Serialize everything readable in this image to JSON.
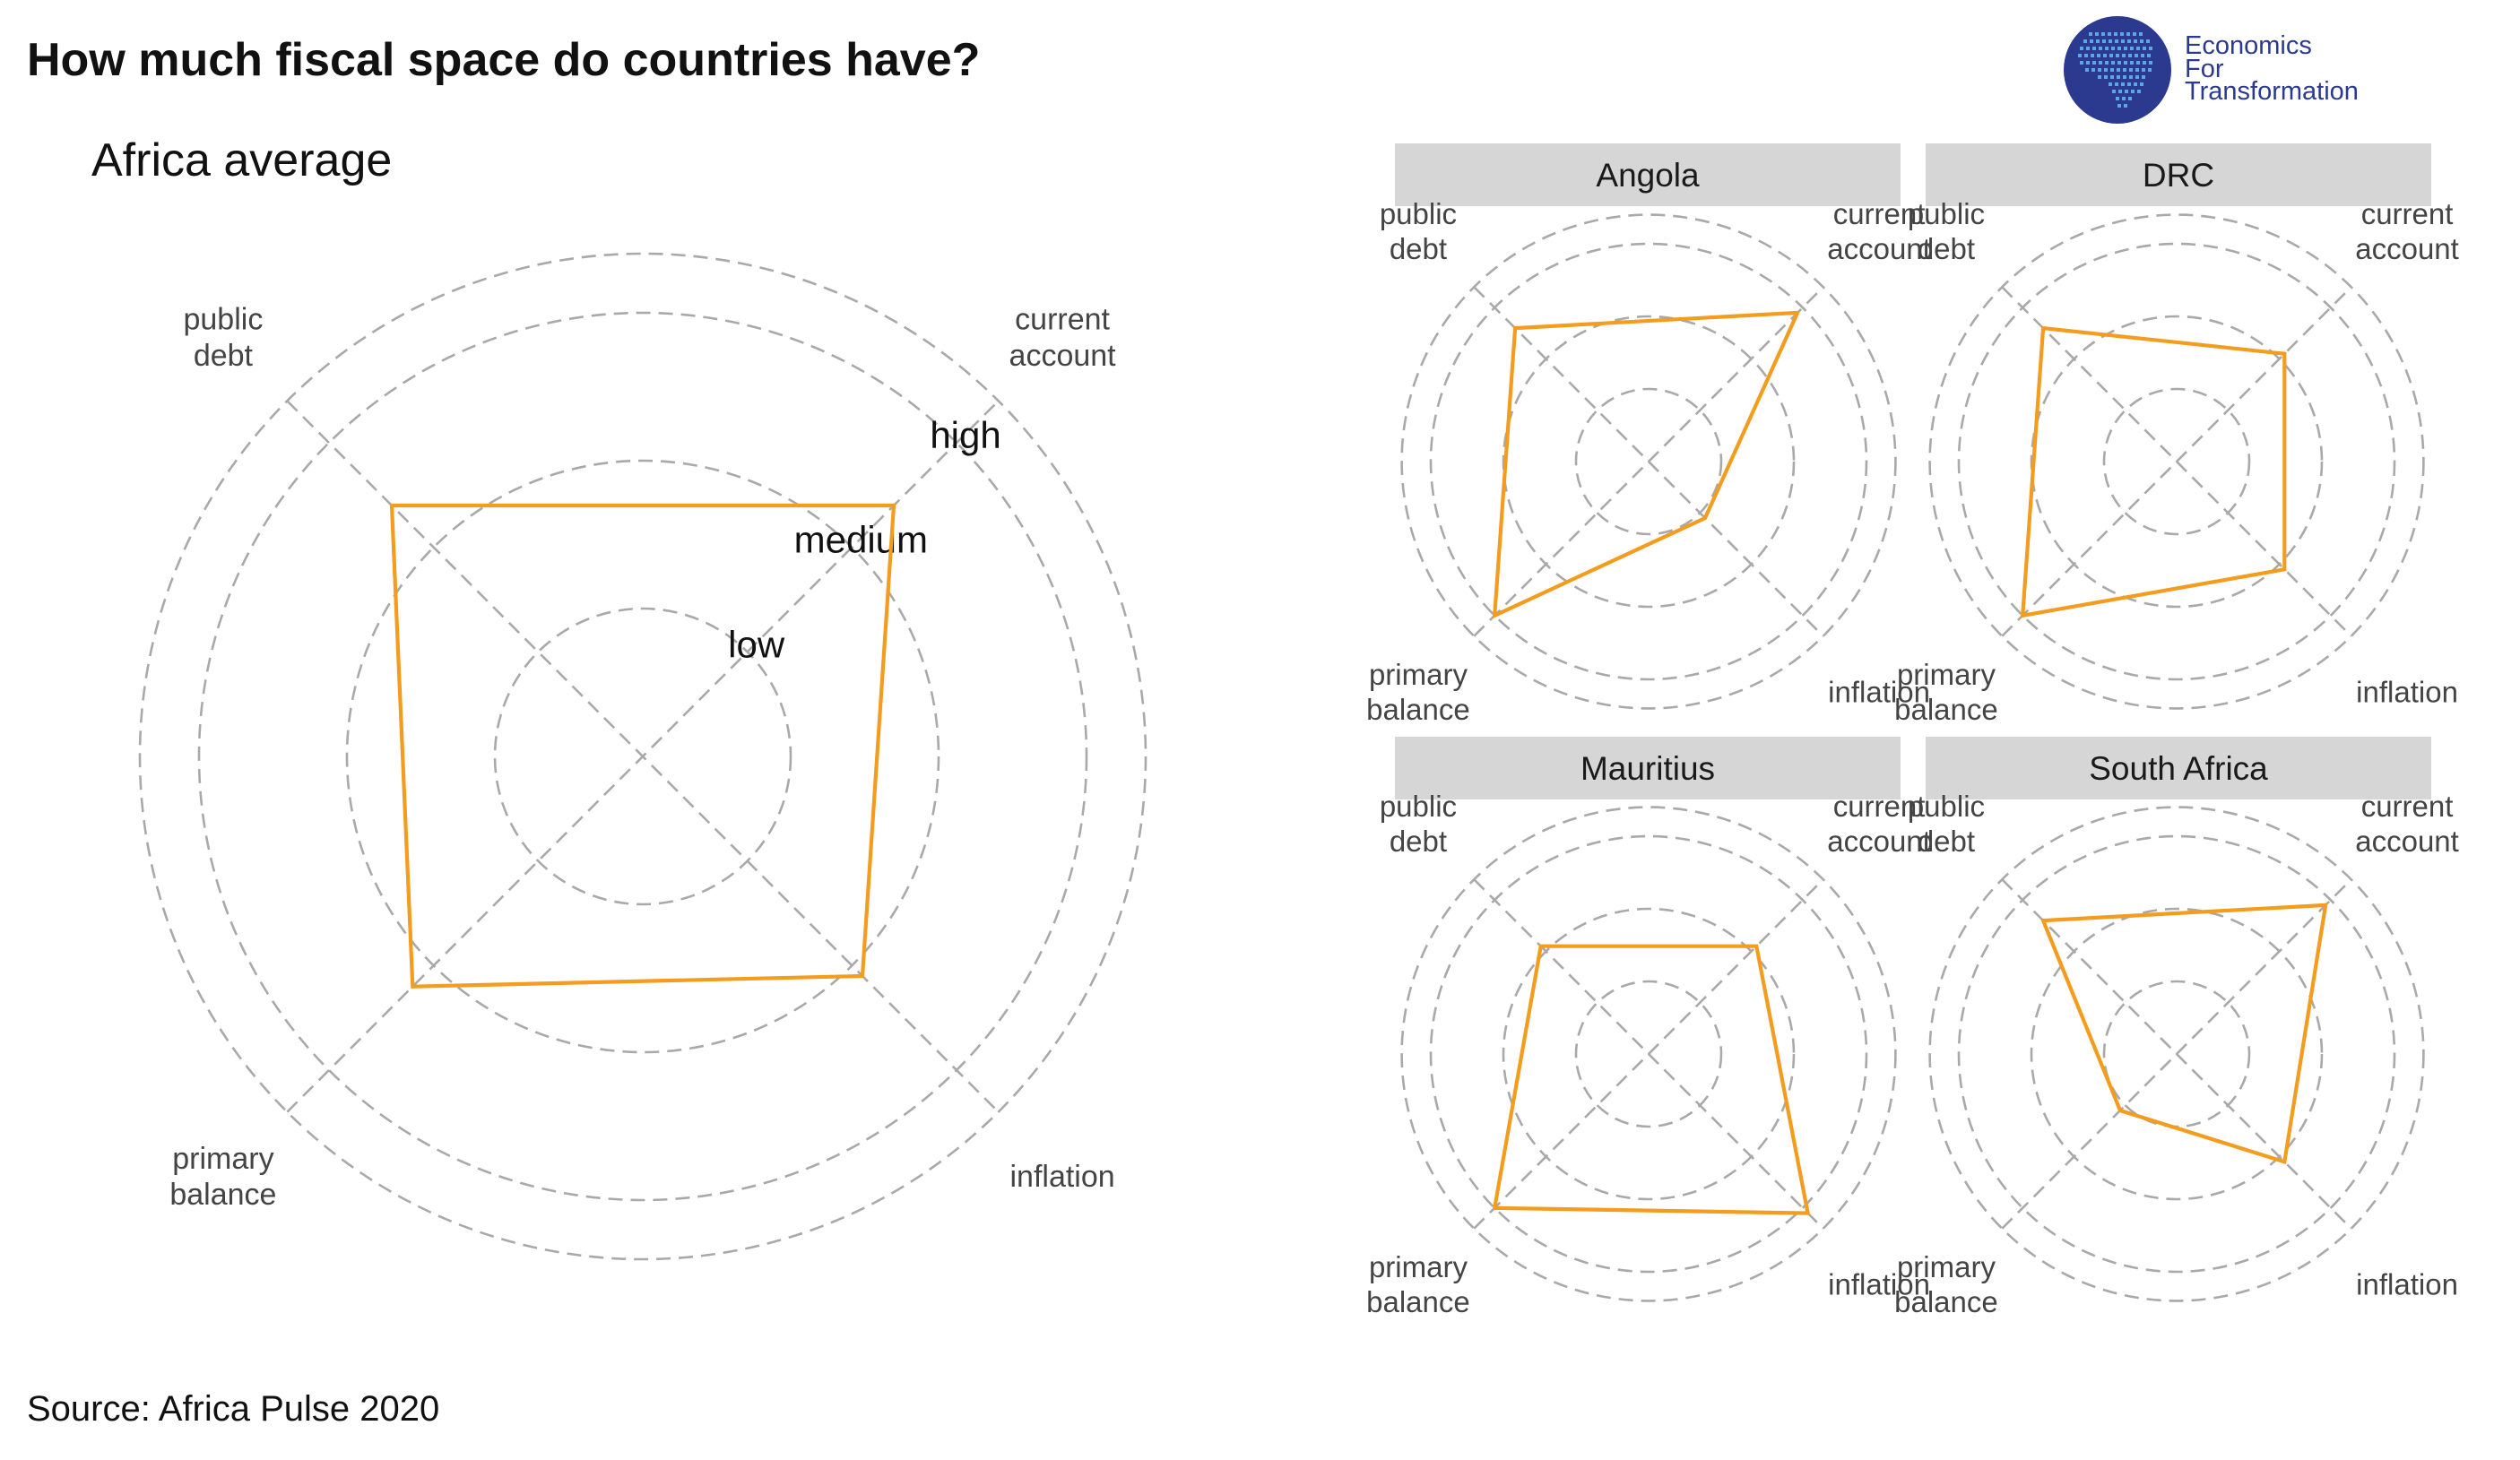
{
  "title": "How much fiscal space do countries have?",
  "source": "Source: Africa Pulse 2020",
  "logo": {
    "lines": [
      "Economics",
      "For",
      "Transformation"
    ],
    "circle_color": "#2b3a8f",
    "dots_color": "#5aa9e6",
    "icon": "africa-map-icon"
  },
  "colors": {
    "series": "#f39c1d",
    "grid": "#a9a9a9",
    "strip": "#d6d6d6"
  },
  "chart_data": [
    {
      "type": "radar",
      "title": "Africa average",
      "axes": [
        [
          "current",
          "account"
        ],
        [
          "inflation"
        ],
        [
          "primary",
          "balance"
        ],
        [
          "public",
          "debt"
        ]
      ],
      "levels": [
        "low",
        "medium",
        "high"
      ],
      "values": [
        2.4,
        2.1,
        2.2,
        2.4
      ],
      "grid": true
    },
    {
      "type": "radar",
      "title": "Angola",
      "axes": [
        [
          "current",
          "account"
        ],
        [
          "inflation"
        ],
        [
          "primary",
          "balance"
        ],
        [
          "public",
          "debt"
        ]
      ],
      "values": [
        2.9,
        1.1,
        3.0,
        2.6
      ],
      "grid": true
    },
    {
      "type": "radar",
      "title": "DRC",
      "axes": [
        [
          "current",
          "account"
        ],
        [
          "inflation"
        ],
        [
          "primary",
          "balance"
        ],
        [
          "public",
          "debt"
        ]
      ],
      "values": [
        2.1,
        2.1,
        3.0,
        2.6
      ],
      "grid": true
    },
    {
      "type": "radar",
      "title": "Mauritius",
      "axes": [
        [
          "current",
          "account"
        ],
        [
          "inflation"
        ],
        [
          "primary",
          "balance"
        ],
        [
          "public",
          "debt"
        ]
      ],
      "values": [
        2.1,
        3.1,
        3.0,
        2.1
      ],
      "grid": true
    },
    {
      "type": "radar",
      "title": "South Africa",
      "axes": [
        [
          "current",
          "account"
        ],
        [
          "inflation"
        ],
        [
          "primary",
          "balance"
        ],
        [
          "public",
          "debt"
        ]
      ],
      "values": [
        2.9,
        2.1,
        1.1,
        2.6
      ],
      "grid": true
    }
  ]
}
